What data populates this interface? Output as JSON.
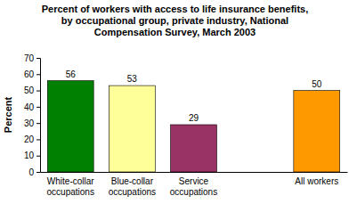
{
  "chart_data": {
    "type": "bar",
    "title": "Percent of workers with access to life insurance benefits, by occupational group,  private industry, National Compensation Survey, March 2003",
    "y_label": "Percent",
    "categories": [
      "White-collar occupations",
      "Blue-collar occupations",
      "Service occupations",
      null,
      "All workers"
    ],
    "values": [
      56,
      53,
      29,
      null,
      50
    ],
    "colors": [
      "#008000",
      "#ffff99",
      "#993366",
      null,
      "#ff9900"
    ],
    "ylim": [
      0,
      70
    ],
    "yticks": [
      0,
      10,
      20,
      30,
      40,
      50,
      60,
      70
    ],
    "grid": false,
    "data_labels": true
  }
}
